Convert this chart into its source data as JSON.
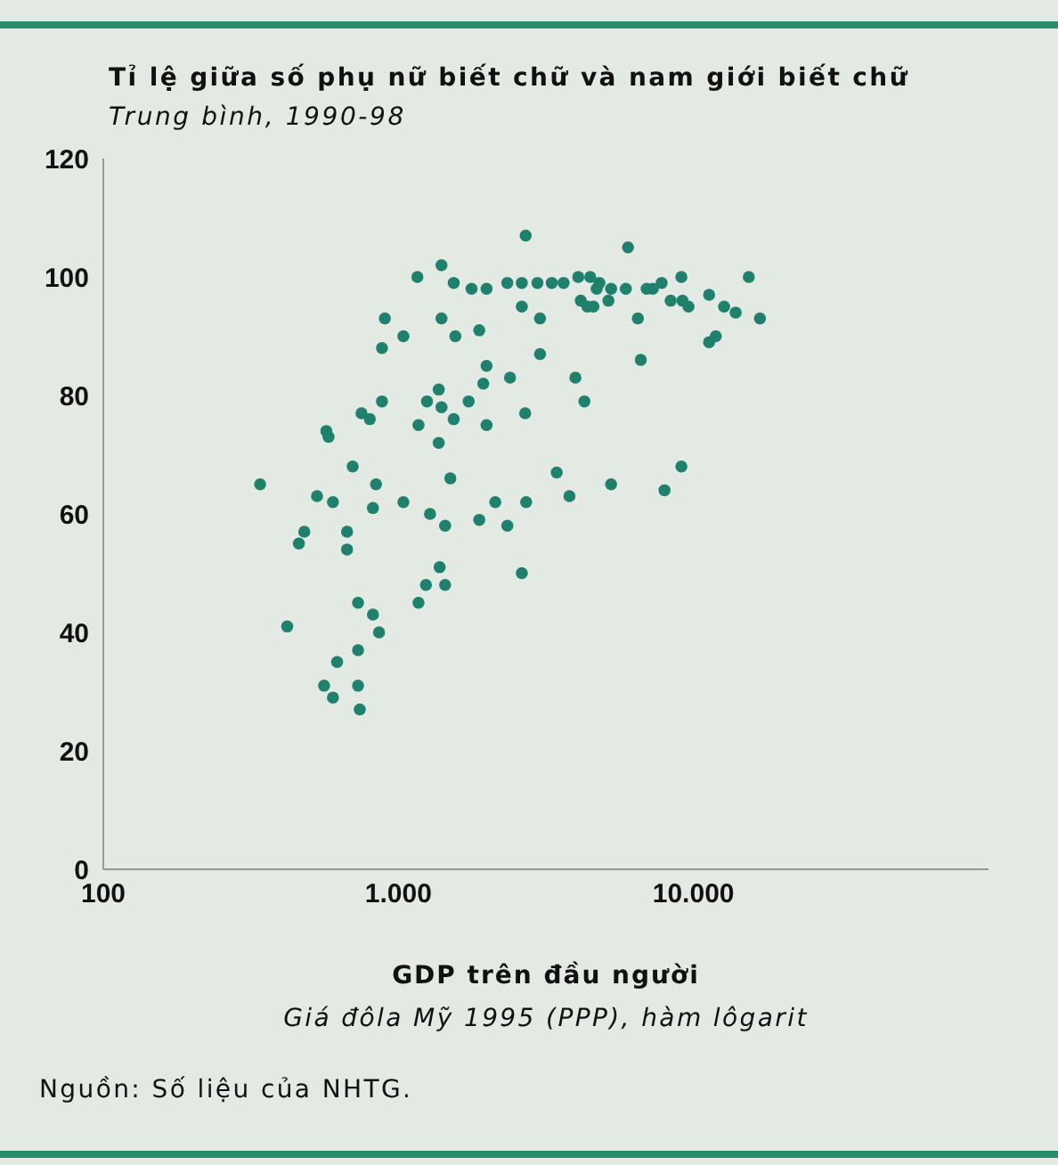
{
  "chart_data": {
    "type": "scatter",
    "title": "Tỉ lệ giữa số phụ nữ biết chữ và nam giới biết chữ",
    "subtitle": "Trung bình, 1990-98",
    "xlabel": "GDP trên đầu người\nGiá đôla Mỹ 1995 (PPP), hàm lôgarit",
    "annotations": [
      "Nguồn: Số liệu của NHTG."
    ],
    "log": "x",
    "marker": "circle",
    "xlim": [
      100,
      100000
    ],
    "xticks": [
      {
        "value": 100,
        "label": "100"
      },
      {
        "value": 1000,
        "label": "1.000"
      },
      {
        "value": 10000,
        "label": "10.000"
      }
    ],
    "ylim": [
      0,
      120
    ],
    "yticks": [
      0,
      20,
      40,
      60,
      80,
      100,
      120
    ],
    "series": [
      {
        "color": "#20806e",
        "x": [
          2700,
          6000,
          1400,
          1160,
          1540,
          1770,
          1990,
          2340,
          2620,
          2960,
          3310,
          3630,
          4070,
          4470,
          4700,
          5260,
          5900,
          6940,
          7800,
          4150,
          4580,
          5150,
          4800,
          7280,
          9100,
          9180,
          8370,
          9620,
          11300,
          12700,
          13900,
          15400,
          16800,
          4370,
          2620,
          1400,
          3020,
          6480,
          900,
          1040,
          1560,
          1880,
          880,
          3020,
          6630,
          1990,
          2390,
          1940,
          3980,
          1370,
          880,
          1250,
          1400,
          1540,
          1730,
          4270,
          2690,
          750,
          800,
          1990,
          1170,
          570,
          580,
          1370,
          700,
          340,
          1500,
          3440,
          5260,
          7980,
          3800,
          840,
          1040,
          530,
          600,
          820,
          2130,
          2710,
          1280,
          480,
          460,
          670,
          670,
          1440,
          1880,
          2340,
          2620,
          1380,
          1240,
          1440,
          1170,
          730,
          820,
          420,
          860,
          730,
          620,
          560,
          730,
          600,
          740,
          11900,
          11300,
          9100
        ],
        "values": [
          107,
          105,
          102,
          100,
          99,
          98,
          98,
          99,
          99,
          99,
          99,
          99,
          100,
          100,
          98,
          98,
          98,
          98,
          99,
          96,
          95,
          96,
          99,
          98,
          100,
          96,
          96,
          95,
          97,
          95,
          94,
          100,
          93,
          95,
          95,
          93,
          93,
          93,
          93,
          90,
          90,
          91,
          88,
          87,
          86,
          85,
          83,
          82,
          83,
          81,
          79,
          79,
          78,
          76,
          79,
          79,
          77,
          77,
          76,
          75,
          75,
          74,
          73,
          72,
          68,
          65,
          66,
          67,
          65,
          64,
          63,
          65,
          62,
          63,
          62,
          61,
          62,
          62,
          60,
          57,
          55,
          57,
          54,
          58,
          59,
          58,
          50,
          51,
          48,
          48,
          45,
          45,
          43,
          41,
          40,
          37,
          35,
          31,
          31,
          29,
          27,
          90,
          89,
          68
        ]
      }
    ]
  }
}
